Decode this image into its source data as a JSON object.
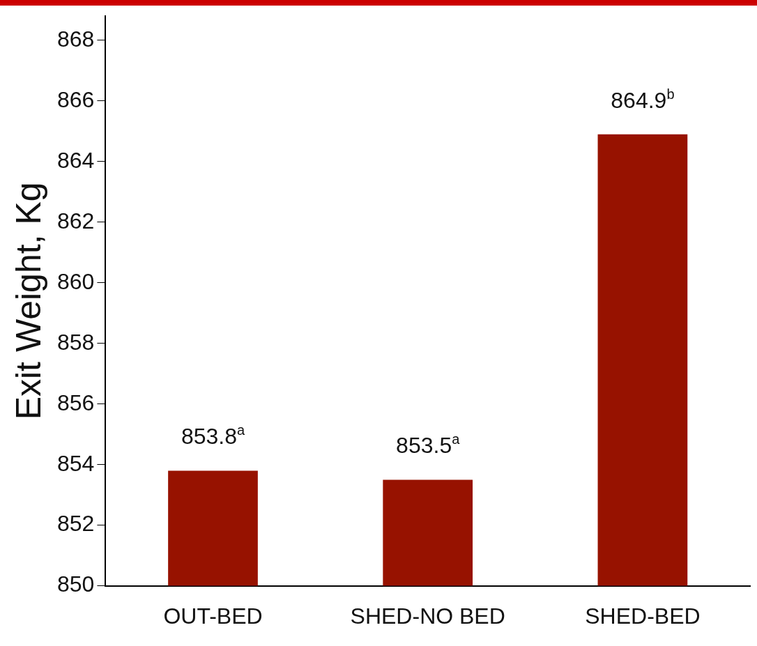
{
  "chart_data": {
    "type": "bar",
    "ylabel": "Exit Weight, Kg",
    "categories": [
      "OUT-BED",
      "SHED-NO BED",
      "SHED-BED"
    ],
    "values": [
      853.8,
      853.5,
      864.9
    ],
    "value_labels": [
      "853.8$^{a}$",
      "853.5$^{a}$",
      "864.9$^{b}$"
    ],
    "color": "#971200",
    "ylim": [
      850,
      868.8
    ],
    "yticks": [
      850,
      852,
      854,
      856,
      858,
      860,
      862,
      864,
      866,
      868
    ],
    "grid": false,
    "legend": false
  }
}
